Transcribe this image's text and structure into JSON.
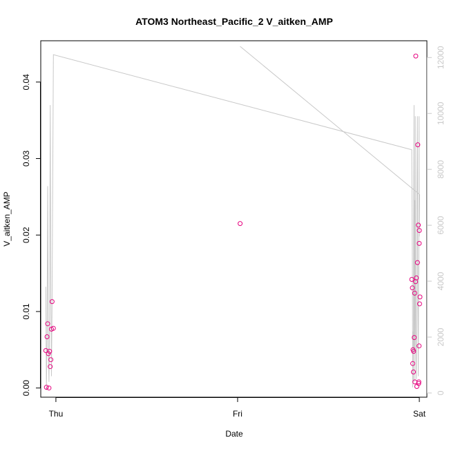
{
  "chart_data": {
    "type": "scatter",
    "title": "ATOM3 Northeast_Pacific_2 V_aitken_AMP",
    "xlabel": "Date",
    "ylabel": "V_aitken_AMP",
    "x_axis_kind": "date",
    "x_ticks": [
      {
        "x": "Thu 00:00",
        "label": "Thu"
      },
      {
        "x": "Fri 00:00",
        "label": "Fri"
      },
      {
        "x": "Sat 00:00",
        "label": "Sat"
      }
    ],
    "xlim": [
      "Wed 22:00",
      "Sat 01:00"
    ],
    "ylim": [
      -0.0012,
      0.0454
    ],
    "y_ticks": [
      0.0,
      0.01,
      0.02,
      0.03,
      0.04
    ],
    "y_tick_labels": [
      "0.00",
      "0.01",
      "0.02",
      "0.03",
      "0.04"
    ],
    "y2lim": [
      -150,
      12600
    ],
    "y2_ticks": [
      0,
      2000,
      4000,
      6000,
      8000,
      10000,
      12000
    ],
    "y2_tick_labels": [
      "0",
      "2000",
      "4000",
      "6000",
      "8000",
      "10000",
      "12000"
    ],
    "grid": false,
    "legend": "none",
    "colors": {
      "points": "#e6007e",
      "line": "#c8c8c8",
      "right_axis": "#c8c8c8"
    },
    "series": [
      {
        "type": "scatter",
        "axis": "left",
        "points": [
          {
            "x": "Wed 22:40",
            "y": 0.0049
          },
          {
            "x": "Wed 22:45",
            "y": 0.0001
          },
          {
            "x": "Wed 22:50",
            "y": 0.0067
          },
          {
            "x": "Wed 22:55",
            "y": 0.0084
          },
          {
            "x": "Wed 23:00",
            "y": 0.0045
          },
          {
            "x": "Wed 23:05",
            "y": 0.0
          },
          {
            "x": "Wed 23:10",
            "y": 0.0048
          },
          {
            "x": "Wed 23:15",
            "y": 0.0028
          },
          {
            "x": "Wed 23:20",
            "y": 0.0037
          },
          {
            "x": "Wed 23:25",
            "y": 0.0077
          },
          {
            "x": "Wed 23:30",
            "y": 0.0113
          },
          {
            "x": "Wed 23:40",
            "y": 0.0078
          },
          {
            "x": "Fri 00:20",
            "y": 0.0215
          },
          {
            "x": "Fri 23:00",
            "y": 0.0142
          },
          {
            "x": "Fri 23:05",
            "y": 0.0131
          },
          {
            "x": "Fri 23:08",
            "y": 0.0032
          },
          {
            "x": "Fri 23:10",
            "y": 0.005
          },
          {
            "x": "Fri 23:13",
            "y": 0.0021
          },
          {
            "x": "Fri 23:15",
            "y": 0.0048
          },
          {
            "x": "Fri 23:20",
            "y": 0.0066
          },
          {
            "x": "Fri 23:23",
            "y": 0.0124
          },
          {
            "x": "Fri 23:25",
            "y": 0.0008
          },
          {
            "x": "Fri 23:30",
            "y": 0.0139
          },
          {
            "x": "Fri 23:32",
            "y": 0.0434
          },
          {
            "x": "Fri 23:37",
            "y": 0.0144
          },
          {
            "x": "Fri 23:40",
            "y": 0.0002
          },
          {
            "x": "Fri 23:45",
            "y": 0.0164
          },
          {
            "x": "Fri 23:48",
            "y": 0.0318
          },
          {
            "x": "Fri 23:52",
            "y": 0.0213
          },
          {
            "x": "Fri 23:55",
            "y": 0.0006
          },
          {
            "x": "Fri 23:56",
            "y": 0.0008
          },
          {
            "x": "Fri 23:58",
            "y": 0.0055
          },
          {
            "x": "Fri 23:59",
            "y": 0.0189
          },
          {
            "x": "Sat 00:00",
            "y": 0.0206
          },
          {
            "x": "Sat 00:02",
            "y": 0.011
          },
          {
            "x": "Sat 00:05",
            "y": 0.0119
          }
        ]
      },
      {
        "type": "line",
        "axis": "right",
        "points": [
          {
            "x": "Wed 22:40",
            "y": 3800
          },
          {
            "x": "Wed 22:45",
            "y": 100
          },
          {
            "x": "Wed 22:50",
            "y": 2000
          },
          {
            "x": "Wed 22:55",
            "y": 7400
          },
          {
            "x": "Wed 23:00",
            "y": 1600
          },
          {
            "x": "Wed 23:05",
            "y": 400
          },
          {
            "x": "Wed 23:10",
            "y": 2800
          },
          {
            "x": "Wed 23:15",
            "y": 10300
          },
          {
            "x": "Wed 23:20",
            "y": 3500
          },
          {
            "x": "Wed 23:25",
            "y": 600
          },
          {
            "x": "Wed 23:30",
            "y": 3300
          },
          {
            "x": "Wed 23:40",
            "y": 12100
          },
          {
            "x": "Fri 23:00",
            "y": 8700
          },
          {
            "x": "Fri 23:05",
            "y": 4400
          },
          {
            "x": "Fri 23:08",
            "y": 200
          },
          {
            "x": "Fri 23:10",
            "y": 2200
          },
          {
            "x": "Fri 23:13",
            "y": 400
          },
          {
            "x": "Fri 23:15",
            "y": 6100
          },
          {
            "x": "Fri 23:18",
            "y": 10300
          },
          {
            "x": "Fri 23:20",
            "y": 1500
          },
          {
            "x": "Fri 23:23",
            "y": 6900
          },
          {
            "x": "Fri 23:25",
            "y": 400
          },
          {
            "x": "Fri 23:28",
            "y": 9900
          },
          {
            "x": "Fri 23:30",
            "y": 3900
          },
          {
            "x": "Fri 23:32",
            "y": 2200
          },
          {
            "x": "Fri 23:37",
            "y": 500
          },
          {
            "x": "Fri 23:40",
            "y": 6900
          },
          {
            "x": "Fri 23:45",
            "y": 9900
          },
          {
            "x": "Fri 23:48",
            "y": 3400
          },
          {
            "x": "Fri 23:52",
            "y": 600
          },
          {
            "x": "Fri 23:55",
            "y": 4600
          },
          {
            "x": "Fri 23:56",
            "y": 4200
          },
          {
            "x": "Fri 23:58",
            "y": 9900
          },
          {
            "x": "Fri 23:59",
            "y": 5600
          },
          {
            "x": "Sat 00:02",
            "y": 7100
          },
          {
            "x": "Fri 00:20",
            "y": 12400
          }
        ]
      }
    ]
  }
}
